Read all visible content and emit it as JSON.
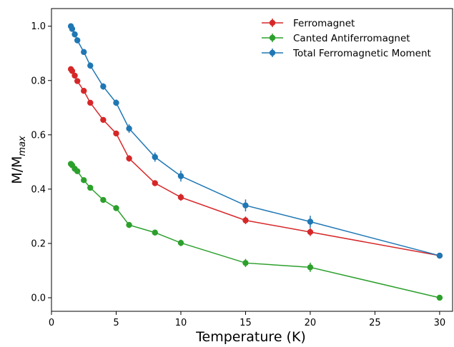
{
  "chart_data": {
    "type": "line",
    "title": "",
    "xlabel": "Temperature (K)",
    "ylabel": "M/M",
    "ylabel_subscript": "max",
    "xlim": [
      0,
      31
    ],
    "ylim": [
      -0.05,
      1.065
    ],
    "xticks": [
      0,
      5,
      10,
      15,
      20,
      25,
      30
    ],
    "yticks": [
      0.0,
      0.2,
      0.4,
      0.6,
      0.8,
      1.0
    ],
    "xtick_labels": [
      "0",
      "5",
      "10",
      "15",
      "20",
      "25",
      "30"
    ],
    "ytick_labels": [
      "0.0",
      "0.2",
      "0.4",
      "0.6",
      "0.8",
      "1.0"
    ],
    "grid": false,
    "legend_position": "top-right",
    "x": [
      1.5,
      1.6,
      1.8,
      2.0,
      2.5,
      3.0,
      4.0,
      5.0,
      6.0,
      8.0,
      10.0,
      15.0,
      20.0,
      30.0
    ],
    "series": [
      {
        "name": "Ferromagnet",
        "color": "#d62728",
        "values": [
          0.842,
          0.835,
          0.818,
          0.798,
          0.762,
          0.718,
          0.655,
          0.605,
          0.513,
          0.422,
          0.37,
          0.285,
          0.242,
          0.155
        ],
        "errors": [
          0.007,
          0.007,
          0.008,
          0.008,
          0.008,
          0.008,
          0.009,
          0.009,
          0.012,
          0.011,
          0.013,
          0.014,
          0.015,
          0.008
        ]
      },
      {
        "name": "Canted Antiferromagnet",
        "color": "#2ca02c",
        "values": [
          0.493,
          0.488,
          0.475,
          0.466,
          0.433,
          0.405,
          0.36,
          0.33,
          0.268,
          0.24,
          0.202,
          0.128,
          0.112,
          0.0
        ],
        "errors": [
          0.006,
          0.006,
          0.007,
          0.007,
          0.008,
          0.009,
          0.009,
          0.009,
          0.011,
          0.01,
          0.012,
          0.015,
          0.017,
          0.006
        ]
      },
      {
        "name": "Total Ferromagnetic Moment",
        "color": "#1f77b4",
        "values": [
          1.0,
          0.99,
          0.97,
          0.948,
          0.905,
          0.855,
          0.778,
          0.718,
          0.623,
          0.518,
          0.448,
          0.34,
          0.28,
          0.155
        ],
        "errors": [
          0.01,
          0.01,
          0.011,
          0.011,
          0.011,
          0.012,
          0.012,
          0.012,
          0.016,
          0.017,
          0.02,
          0.022,
          0.022,
          0.008
        ]
      }
    ]
  }
}
